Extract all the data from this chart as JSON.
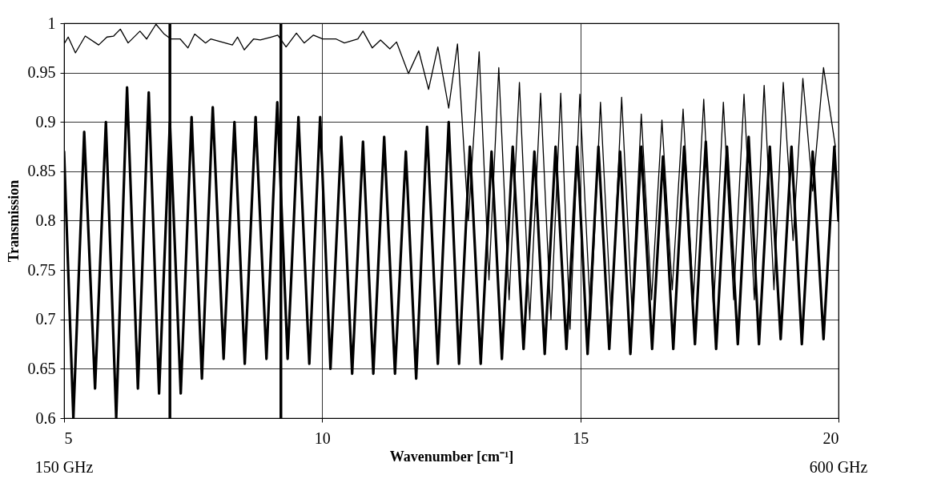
{
  "chart_data": {
    "type": "line",
    "xlabel": "Wavenumber [cm⁻¹]",
    "ylabel": "Transmission",
    "xlim": [
      5,
      20
    ],
    "xticks": [
      5,
      10,
      15,
      20
    ],
    "ylim": [
      0.6,
      1
    ],
    "yticks": [
      0.6,
      0.65,
      0.7,
      0.75,
      0.8,
      0.85,
      0.9,
      0.95,
      1
    ],
    "grid": true,
    "line_style": "solid",
    "marker": "none",
    "annotations": [
      "150 GHz",
      "600 GHz"
    ],
    "ref_lines": [
      {
        "axis": "x",
        "value": 7.05,
        "color": "#000000"
      },
      {
        "axis": "x",
        "value": 9.2,
        "color": "#000000"
      }
    ],
    "series": [
      {
        "color": "#000000",
        "x": [
          5,
          5.18,
          5.39,
          5.6,
          5.81,
          6.01,
          6.22,
          6.43,
          6.64,
          6.84,
          7.05,
          7.26,
          7.47,
          7.67,
          7.88,
          8.09,
          8.3,
          8.5,
          8.71,
          8.92,
          9.13,
          9.33,
          9.54,
          9.75,
          9.96,
          10.16,
          10.37,
          10.58,
          10.79,
          10.99,
          11.2,
          11.41,
          11.62,
          11.82,
          12.03,
          12.24,
          12.45,
          12.65,
          12.86,
          13.07,
          13.28,
          13.48,
          13.69,
          13.9,
          14.11,
          14.31,
          14.52,
          14.73,
          14.94,
          15.14,
          15.35,
          15.56,
          15.77,
          15.97,
          16.18,
          16.39,
          16.6,
          16.8,
          17.01,
          17.22,
          17.43,
          17.63,
          17.84,
          18.05,
          18.26,
          18.46,
          18.67,
          18.88,
          19.09,
          19.29,
          19.5,
          19.71,
          19.92,
          20
        ],
        "values": [
          0.87,
          0.6,
          0.89,
          0.63,
          0.9,
          0.6,
          0.935,
          0.63,
          0.93,
          0.625,
          0.9,
          0.625,
          0.905,
          0.64,
          0.915,
          0.66,
          0.9,
          0.655,
          0.905,
          0.66,
          0.92,
          0.66,
          0.905,
          0.655,
          0.905,
          0.65,
          0.885,
          0.645,
          0.88,
          0.645,
          0.885,
          0.645,
          0.87,
          0.64,
          0.895,
          0.655,
          0.9,
          0.655,
          0.875,
          0.655,
          0.87,
          0.66,
          0.875,
          0.67,
          0.87,
          0.665,
          0.875,
          0.67,
          0.875,
          0.665,
          0.875,
          0.67,
          0.87,
          0.665,
          0.875,
          0.67,
          0.865,
          0.67,
          0.875,
          0.675,
          0.88,
          0.67,
          0.875,
          0.675,
          0.885,
          0.675,
          0.875,
          0.68,
          0.875,
          0.675,
          0.87,
          0.68,
          0.875,
          0.8
        ]
      },
      {
        "color": "#000000",
        "x": [
          5,
          5.08,
          5.22,
          5.41,
          5.67,
          5.83,
          5.96,
          6.09,
          6.24,
          6.47,
          6.6,
          6.78,
          6.94,
          7.07,
          7.25,
          7.4,
          7.53,
          7.74,
          7.84,
          8.26,
          8.36,
          8.49,
          8.67,
          8.8,
          9.01,
          9.14,
          9.3,
          9.5,
          9.65,
          9.83,
          10.01,
          10.27,
          10.43,
          10.69,
          10.79,
          10.97,
          11.13,
          11.31,
          11.44,
          11.67,
          11.87,
          12.06,
          12.24,
          12.45,
          12.62,
          12.83,
          13.04,
          13.23,
          13.42,
          13.62,
          13.82,
          14.02,
          14.23,
          14.43,
          14.62,
          14.8,
          14.99,
          15.2,
          15.39,
          15.6,
          15.8,
          16,
          16.18,
          16.38,
          16.58,
          16.78,
          16.99,
          17.19,
          17.39,
          17.58,
          17.77,
          17.97,
          18.17,
          18.37,
          18.56,
          18.75,
          18.93,
          19.12,
          19.31,
          19.5,
          19.71,
          19.94
        ],
        "values": [
          0.979,
          0.986,
          0.97,
          0.987,
          0.978,
          0.986,
          0.987,
          0.994,
          0.98,
          0.992,
          0.984,
          0.999,
          0.989,
          0.984,
          0.984,
          0.975,
          0.989,
          0.98,
          0.984,
          0.978,
          0.986,
          0.973,
          0.984,
          0.983,
          0.986,
          0.988,
          0.976,
          0.99,
          0.98,
          0.988,
          0.984,
          0.984,
          0.98,
          0.984,
          0.992,
          0.975,
          0.983,
          0.974,
          0.981,
          0.949,
          0.972,
          0.933,
          0.976,
          0.914,
          0.979,
          0.8,
          0.971,
          0.74,
          0.955,
          0.72,
          0.94,
          0.7,
          0.929,
          0.7,
          0.929,
          0.69,
          0.928,
          0.7,
          0.92,
          0.7,
          0.925,
          0.71,
          0.908,
          0.72,
          0.902,
          0.73,
          0.913,
          0.72,
          0.923,
          0.71,
          0.92,
          0.72,
          0.928,
          0.72,
          0.937,
          0.73,
          0.94,
          0.78,
          0.944,
          0.83,
          0.955,
          0.875
        ]
      }
    ]
  }
}
